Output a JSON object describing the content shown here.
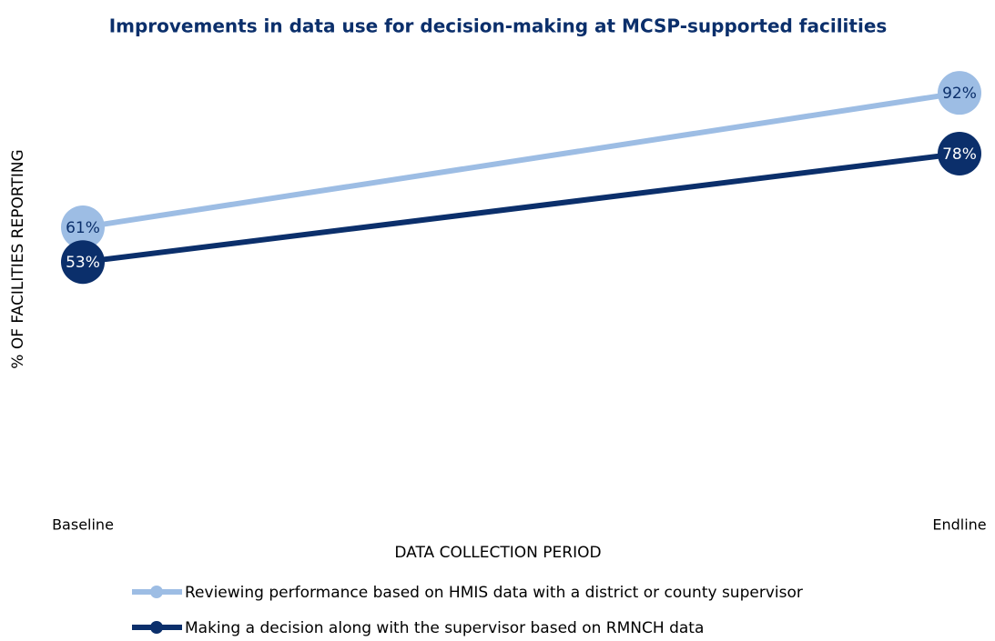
{
  "chart_data": {
    "type": "line",
    "title": "Improvements in data use for decision-making at MCSP-supported facilities",
    "y_label": "% OF FACILITIES REPORTING",
    "x_label": "DATA COLLECTION PERIOD",
    "categories": [
      "Baseline",
      "Endline"
    ],
    "series": [
      {
        "name": "Reviewing performance based on HMIS data with a district or county supervisor",
        "color": "#9dbde4",
        "label_color": "#0b2f6b",
        "values": [
          61,
          92
        ],
        "value_labels": [
          "61%",
          "92%"
        ]
      },
      {
        "name": "Making a decision along with the supervisor based on RMNCH data",
        "color": "#0b2f6b",
        "label_color": "#ffffff",
        "values": [
          53,
          78
        ],
        "value_labels": [
          "53%",
          "78%"
        ]
      }
    ],
    "ylim": [
      0,
      100
    ],
    "grid": false
  }
}
